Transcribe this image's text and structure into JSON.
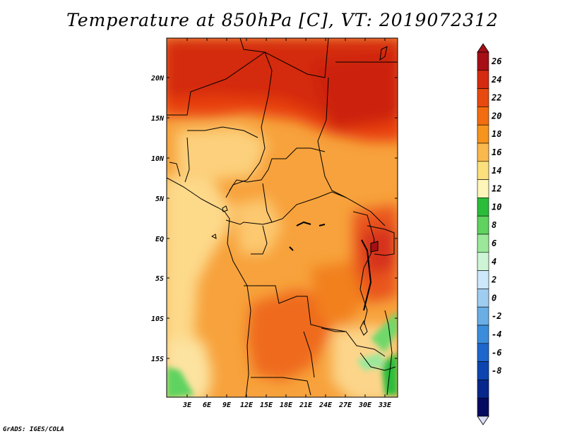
{
  "title": "Temperature at 850hPa [C], VT: 2019072312",
  "credit": "GrADS: IGES/COLA",
  "map": {
    "lat_labels": [
      "20N",
      "15N",
      "10N",
      "5N",
      "EQ",
      "5S",
      "10S",
      "15S"
    ],
    "lon_labels": [
      "3E",
      "6E",
      "9E",
      "12E",
      "15E",
      "18E",
      "21E",
      "24E",
      "27E",
      "30E",
      "33E"
    ]
  },
  "colorbar": {
    "labels": [
      "26",
      "24",
      "22",
      "20",
      "18",
      "16",
      "14",
      "12",
      "10",
      "8",
      "6",
      "4",
      "2",
      "0",
      "-2",
      "-4",
      "-6",
      "-8"
    ],
    "colors": [
      "#a50f15",
      "#d42a10",
      "#e8490e",
      "#f26d0f",
      "#f7941d",
      "#fab94d",
      "#fce07d",
      "#fdf6b8",
      "#2bbd3a",
      "#5fd35e",
      "#9be89b",
      "#cdf5d5",
      "#cce8fa",
      "#9fcdf0",
      "#6aaee6",
      "#3b8ddc",
      "#1d66cc",
      "#0d45b0",
      "#08278c",
      "#040a60"
    ],
    "under_color": "#d8dcf5"
  }
}
